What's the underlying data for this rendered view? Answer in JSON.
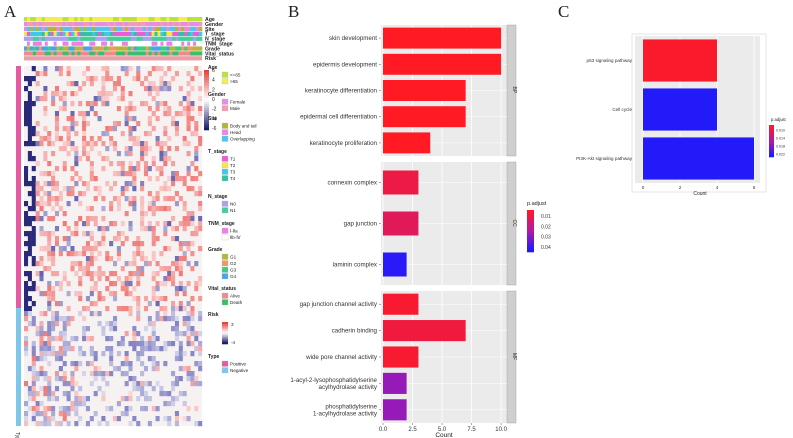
{
  "panel_labels": [
    "A",
    "B",
    "C"
  ],
  "chart_data": [
    {
      "panel": "A",
      "type": "heatmap",
      "title": "",
      "annotation_tracks": [
        "Age",
        "Gender",
        "Site",
        "T_stage",
        "N_stage",
        "TNM_stage",
        "Grade",
        "Vital_status",
        "Risk"
      ],
      "row_annotation": "Type",
      "color_scale": {
        "ticks": [
          "6",
          "4",
          "2",
          "0",
          "-2",
          "-4",
          "-6"
        ],
        "colors": [
          "#e8413c",
          "#ffffff",
          "#1a1a6e"
        ]
      },
      "risk_scale": {
        "ticks": [
          "3",
          "-4"
        ]
      },
      "legends": [
        {
          "title": "Age",
          "entries": [
            {
              "label": "<=65",
              "color": "#b8e33a"
            },
            {
              "label": ">65",
              "color": "#f4ee4a"
            }
          ]
        },
        {
          "title": "Gender",
          "entries": [
            {
              "label": "Female",
              "color": "#e78ce5"
            },
            {
              "label": "Male",
              "color": "#f29bb5"
            }
          ]
        },
        {
          "title": "Site",
          "entries": [
            {
              "label": "Body and tail",
              "color": "#b5b437"
            },
            {
              "label": "Head",
              "color": "#e98ae2"
            },
            {
              "label": "Overlapping",
              "color": "#4fc4ef"
            }
          ]
        },
        {
          "title": "T_stage",
          "entries": [
            {
              "label": "T1",
              "color": "#ee5bd6"
            },
            {
              "label": "T2",
              "color": "#f4e83a"
            },
            {
              "label": "T3",
              "color": "#3fc8e8"
            },
            {
              "label": "T4",
              "color": "#34c0a4"
            }
          ]
        },
        {
          "title": "N_stage",
          "entries": [
            {
              "label": "N0",
              "color": "#a9a3ee"
            },
            {
              "label": "N1",
              "color": "#43cf9a"
            }
          ]
        },
        {
          "title": "TNM_stage",
          "entries": [
            {
              "label": "Ⅰ-Ⅱa",
              "color": "#ee7fe6"
            },
            {
              "label": "Ⅱb-Ⅳ",
              "color": "#ffffff"
            }
          ]
        },
        {
          "title": "Grade",
          "entries": [
            {
              "label": "G1",
              "color": "#b7b53c"
            },
            {
              "label": "G2",
              "color": "#ee9a5a"
            },
            {
              "label": "G3",
              "color": "#3ccf7e"
            },
            {
              "label": "G4",
              "color": "#4aa3e8"
            }
          ]
        },
        {
          "title": "Vital_status",
          "entries": [
            {
              "label": "Alive",
              "color": "#f08a8a"
            },
            {
              "label": "Death",
              "color": "#3dbd6a"
            }
          ]
        },
        {
          "title": "Risk",
          "entries": []
        },
        {
          "title": "Type",
          "entries": [
            {
              "label": "Positive",
              "color": "#e55aa0"
            },
            {
              "label": "Negative",
              "color": "#7cc7ea"
            }
          ]
        }
      ]
    },
    {
      "panel": "B",
      "type": "bar",
      "orientation": "horizontal",
      "title": "",
      "xlabel": "Count",
      "ylabel": "",
      "xlim": [
        0,
        10.5
      ],
      "xticks": [
        "0.0",
        "2.5",
        "5.0",
        "7.5",
        "10.0"
      ],
      "legend": {
        "title": "p.adjust",
        "ticks": [
          "0.01",
          "0.02",
          "0.03",
          "0.04"
        ],
        "range": [
          0.004,
          0.045
        ]
      },
      "facets": [
        {
          "name": "BP",
          "categories": [
            "skin development",
            "epidermis development",
            "keratinocyte differentiation",
            "epidermal cell differentiation",
            "keratinocyte proliferation"
          ],
          "values": [
            10,
            10,
            7,
            7,
            4
          ],
          "p_adjust": [
            0.0035,
            0.0035,
            0.0035,
            0.0035,
            0.0035
          ]
        },
        {
          "name": "CC",
          "categories": [
            "connexin complex",
            "gap junction",
            "laminin complex"
          ],
          "values": [
            3,
            3,
            2
          ],
          "p_adjust": [
            0.009,
            0.012,
            0.043
          ]
        },
        {
          "name": "MF",
          "categories": [
            "gap junction channel activity",
            "cadherin binding",
            "wide pore channel activity",
            "1-acyl-2-lysophosphatidylserine\nacylhydrolase activity",
            "phosphatidylserine\n1-acylhydrolase activity"
          ],
          "values": [
            3,
            7,
            3,
            2,
            2
          ],
          "p_adjust": [
            0.006,
            0.008,
            0.006,
            0.028,
            0.028
          ]
        }
      ]
    },
    {
      "panel": "C",
      "type": "bar",
      "orientation": "horizontal",
      "title": "",
      "xlabel": "Count",
      "ylabel": "",
      "xlim": [
        0,
        6.2
      ],
      "xticks": [
        "0",
        "2",
        "4",
        "6"
      ],
      "legend": {
        "title": "p.adjust",
        "ticks": [
          "0.010",
          "0.014",
          "0.018",
          "0.022"
        ],
        "range": [
          0.0075,
          0.0235
        ]
      },
      "categories": [
        "p53 signaling pathway",
        "Cell cycle",
        "PI3K-Akt signaling pathway"
      ],
      "values": [
        4,
        4,
        6
      ],
      "p_adjust": [
        0.008,
        0.023,
        0.023
      ]
    }
  ]
}
